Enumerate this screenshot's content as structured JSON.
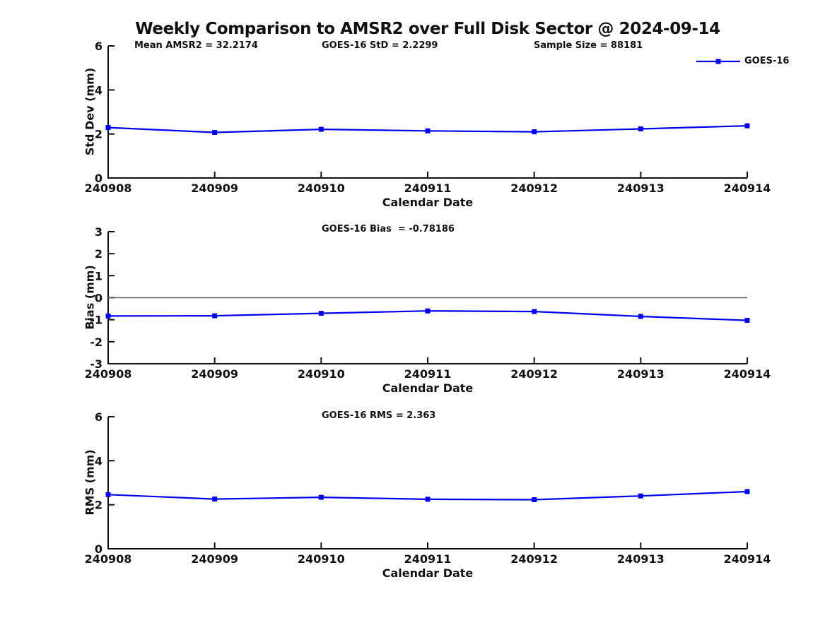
{
  "title": "Weekly Comparison to AMSR2 over Full Disk Sector @ 2024-09-14",
  "legend": {
    "label": "GOES-16",
    "position": "top-right"
  },
  "colors": {
    "line": "#0000EE",
    "axis": "#111111",
    "zero_line": "#666666",
    "background": "#ffffff"
  },
  "chart_data": [
    {
      "type": "line",
      "name": "std-dev-plot",
      "annotations": [
        "Mean AMSR2 = 32.2174",
        "GOES-16 StD = 2.2299",
        "Sample Size = 88181"
      ],
      "x": [
        "240908",
        "240909",
        "240910",
        "240911",
        "240912",
        "240913",
        "240914"
      ],
      "series": [
        {
          "name": "GOES-16",
          "values": [
            2.29,
            2.07,
            2.21,
            2.14,
            2.1,
            2.23,
            2.37
          ]
        }
      ],
      "xlabel": "Calendar Date",
      "ylabel": "Std Dev (mm)",
      "ylim": [
        0,
        6
      ],
      "yticks": [
        0,
        2,
        4,
        6
      ],
      "grid": false,
      "zero_line": false
    },
    {
      "type": "line",
      "name": "bias-plot",
      "annotations": [
        "GOES-16 Bias  = -0.78186"
      ],
      "x": [
        "240908",
        "240909",
        "240910",
        "240911",
        "240912",
        "240913",
        "240914"
      ],
      "series": [
        {
          "name": "GOES-16",
          "values": [
            -0.83,
            -0.82,
            -0.71,
            -0.6,
            -0.63,
            -0.85,
            -1.03
          ]
        }
      ],
      "xlabel": "Calendar Date",
      "ylabel": "Bias (mm)",
      "ylim": [
        -3,
        3
      ],
      "yticks": [
        3,
        2,
        1,
        0,
        -1,
        -2,
        -3
      ],
      "grid": false,
      "zero_line": true
    },
    {
      "type": "line",
      "name": "rms-plot",
      "annotations": [
        "GOES-16 RMS = 2.363"
      ],
      "x": [
        "240908",
        "240909",
        "240910",
        "240911",
        "240912",
        "240913",
        "240914"
      ],
      "series": [
        {
          "name": "GOES-16",
          "values": [
            2.46,
            2.26,
            2.34,
            2.25,
            2.23,
            2.4,
            2.6
          ]
        }
      ],
      "xlabel": "Calendar Date",
      "ylabel": "RMS (mm)",
      "ylim": [
        0,
        6
      ],
      "yticks": [
        0,
        2,
        4,
        6
      ],
      "grid": false,
      "zero_line": false
    }
  ]
}
